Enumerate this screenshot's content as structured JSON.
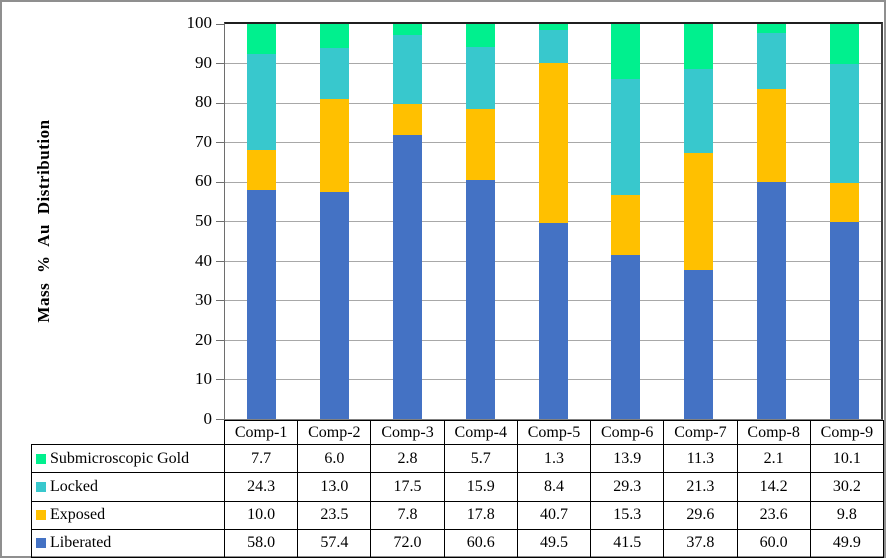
{
  "chart_data": {
    "type": "bar",
    "stacked": true,
    "categories": [
      "Comp-1",
      "Comp-2",
      "Comp-3",
      "Comp-4",
      "Comp-5",
      "Comp-6",
      "Comp-7",
      "Comp-8",
      "Comp-9"
    ],
    "series": [
      {
        "name": "Liberated",
        "color": "#4472C4",
        "values": [
          58.0,
          57.4,
          72.0,
          60.6,
          49.5,
          41.5,
          37.8,
          60.0,
          49.9
        ]
      },
      {
        "name": "Exposed",
        "color": "#FFC000",
        "values": [
          10.0,
          23.5,
          7.8,
          17.8,
          40.7,
          15.3,
          29.6,
          23.6,
          9.8
        ]
      },
      {
        "name": "Locked",
        "color": "#38C8CD",
        "values": [
          24.3,
          13.0,
          17.5,
          15.9,
          8.4,
          29.3,
          21.3,
          14.2,
          30.2
        ]
      },
      {
        "name": "Submicroscopic Gold",
        "color": "#00F08E",
        "values": [
          7.7,
          6.0,
          2.8,
          5.7,
          1.3,
          13.9,
          11.3,
          2.1,
          10.1
        ]
      }
    ],
    "title": "",
    "xlabel": "",
    "ylabel": "Mass % Au Distribution",
    "ylim": [
      0,
      100
    ],
    "ytick_step": 10,
    "grid": true,
    "legend_position": "table-left",
    "value_decimals": 1
  }
}
